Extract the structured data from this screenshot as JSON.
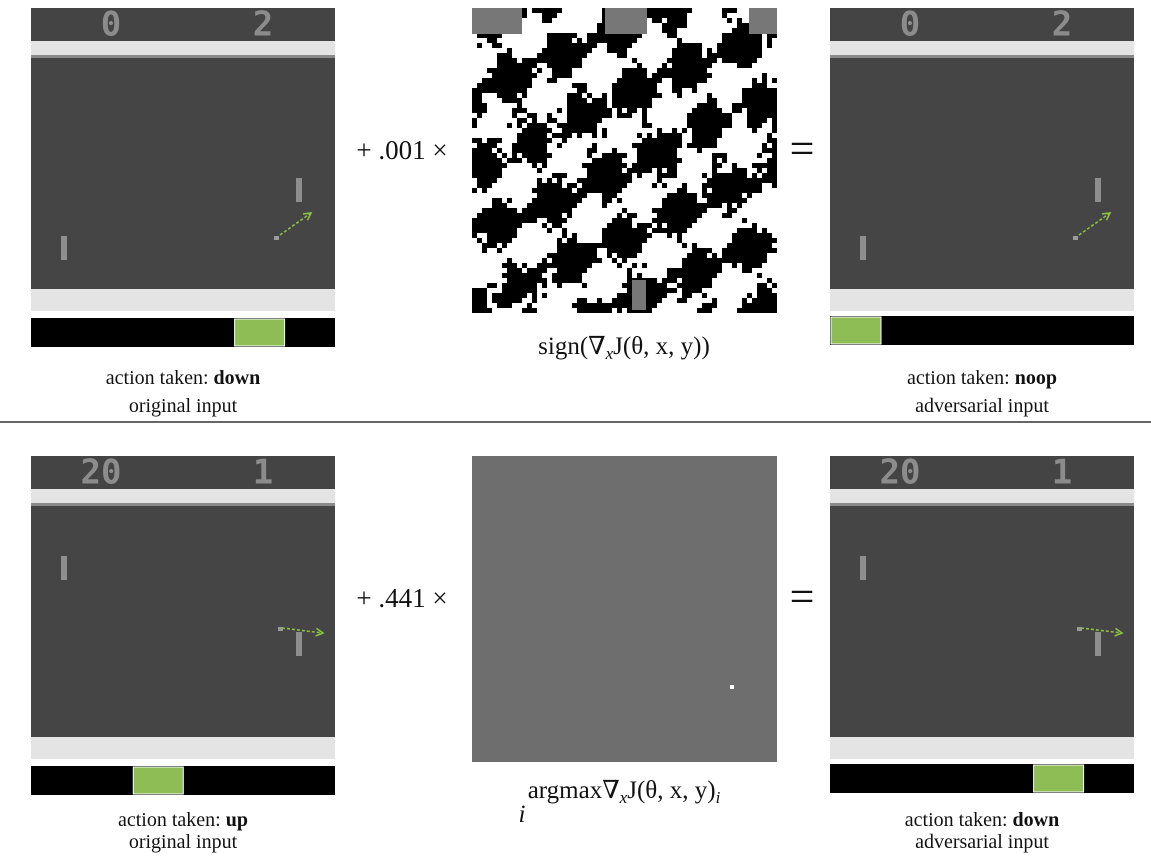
{
  "rows": [
    {
      "original": {
        "scores": [
          "0",
          "2"
        ],
        "action_prefix": "action taken:",
        "action": "down",
        "caption": "original input"
      },
      "operator": "+ .001 ×",
      "perturbation_label": [
        {
          "text": "sign(∇"
        },
        {
          "sub": "x"
        },
        {
          "text": "J(θ, x, y))"
        }
      ],
      "equals": "=",
      "adversarial": {
        "scores": [
          "0",
          "2"
        ],
        "action_prefix": "action taken:",
        "action": "noop",
        "caption": "adversarial input"
      }
    },
    {
      "original": {
        "scores": [
          "20",
          "1"
        ],
        "action_prefix": "action taken:",
        "action": "up",
        "caption": "original input"
      },
      "operator": "+ .441 ×",
      "perturbation_label": [
        {
          "text": "argmax"
        },
        {
          "under": "i"
        },
        {
          "text": "∇"
        },
        {
          "sub": "x"
        },
        {
          "text": "J(θ, x, y)"
        },
        {
          "sub": "i"
        }
      ],
      "equals": "=",
      "adversarial": {
        "scores": [
          "20",
          "1"
        ],
        "action_prefix": "action taken:",
        "action": "down",
        "caption": "adversarial input"
      }
    }
  ]
}
